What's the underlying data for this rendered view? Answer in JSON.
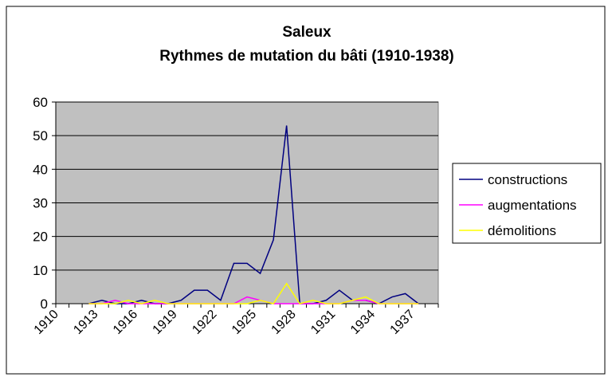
{
  "chart_data": {
    "type": "line",
    "title": "Saleux",
    "subtitle": "Rythmes de mutation du bâti (1910-1938)",
    "categories": [
      "1910",
      null,
      null,
      "1913",
      null,
      null,
      "1916",
      null,
      null,
      "1919",
      null,
      null,
      "1922",
      null,
      null,
      "1925",
      null,
      null,
      "1928",
      null,
      null,
      "1931",
      null,
      null,
      "1934",
      null,
      null,
      "1937",
      null
    ],
    "series": [
      {
        "name": "constructions",
        "color": "#000080",
        "values": [
          null,
          null,
          0,
          1,
          0,
          0,
          1,
          0,
          0,
          1,
          4,
          4,
          1,
          12,
          12,
          9,
          19,
          53,
          0,
          0,
          1,
          4,
          1,
          1,
          0,
          2,
          3,
          0,
          null
        ]
      },
      {
        "name": "augmentations",
        "color": "#ff00ff",
        "values": [
          null,
          null,
          0,
          0,
          1,
          0,
          0,
          0,
          0,
          0,
          0,
          0,
          0,
          0,
          2,
          1,
          0,
          0,
          0,
          0,
          0,
          0,
          1,
          1,
          0,
          0,
          0,
          0,
          null
        ]
      },
      {
        "name": "démolitions",
        "color": "#ffff00",
        "values": [
          null,
          null,
          0,
          0,
          0,
          1,
          0,
          1,
          0,
          0,
          0,
          0,
          0,
          0,
          0,
          1,
          0,
          6,
          0,
          1,
          0,
          0,
          1,
          2,
          0,
          0,
          0,
          0,
          null
        ]
      }
    ],
    "ylim": [
      0,
      60
    ],
    "yticks": [
      0,
      10,
      20,
      30,
      40,
      50,
      60
    ],
    "grid": true,
    "plot_background": "#c0c0c0",
    "legend": "right"
  }
}
